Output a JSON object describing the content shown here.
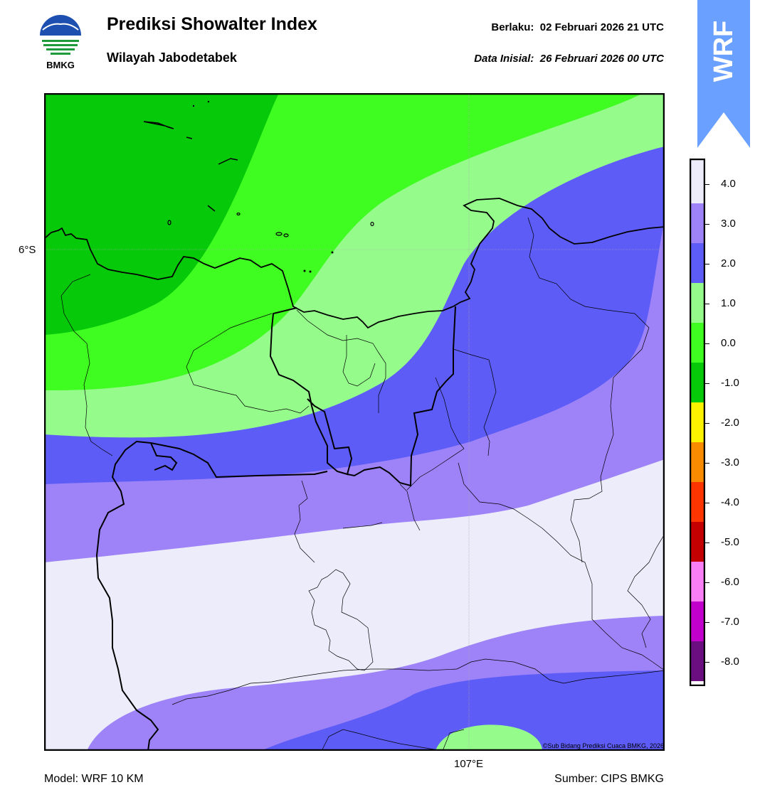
{
  "header": {
    "title": "Prediksi Showalter Index",
    "subtitle": "Wilayah Jabodetabek",
    "valid_label": "Berlaku:",
    "valid_value": "02 Februari 2026 21 UTC",
    "init_label": "Data Inisial:",
    "init_value": "26 Februari 2026 00 UTC"
  },
  "logo": {
    "text": "BMKG",
    "icon": "bmkg-logo-icon"
  },
  "model_tab": {
    "text": "WRF",
    "color": "#6aa0ff"
  },
  "map": {
    "lat_label": "6°S",
    "lon_label": "107°E",
    "credit": "©Sub Bidang Prediksi Cuaca BMKG, 2026"
  },
  "colorbar": {
    "labels": [
      "4.0",
      "3.0",
      "2.0",
      "1.0",
      "0.0",
      "-1.0",
      "-2.0",
      "-3.0",
      "-4.0",
      "-5.0",
      "-6.0",
      "-7.0",
      "-8.0"
    ],
    "colors": [
      "#ececfb",
      "#9d83f7",
      "#5d5cf7",
      "#95fc8c",
      "#3ffc21",
      "#06c90a",
      "#fdf300",
      "#f98b00",
      "#fd3500",
      "#c50000",
      "#fa7ef5",
      "#c200cb",
      "#6b0e80"
    ]
  },
  "footer": {
    "model": "Model: WRF 10 KM",
    "source": "Sumber: CIPS BMKG"
  }
}
